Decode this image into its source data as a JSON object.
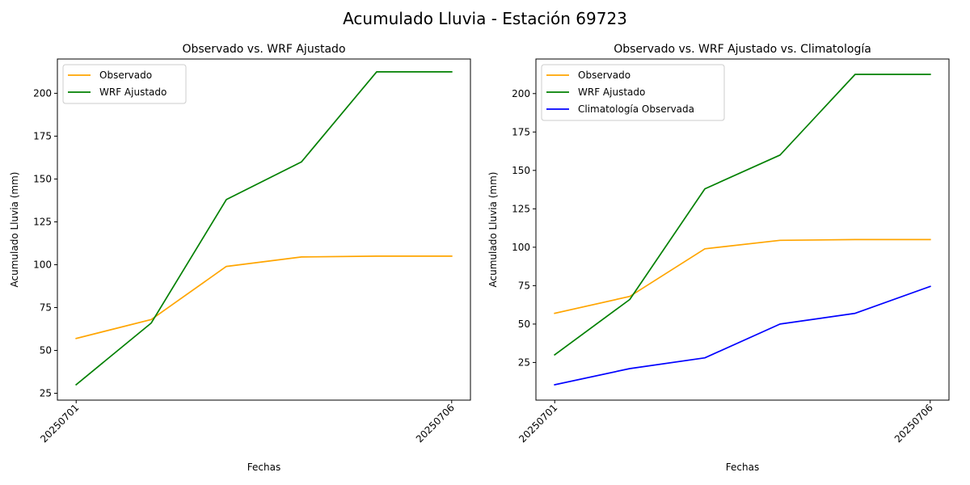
{
  "figure": {
    "suptitle": "Acumulado Lluvia - Estación 69723"
  },
  "chart_data": [
    {
      "type": "line",
      "title": "Observado vs. WRF Ajustado",
      "xlabel": "Fechas",
      "ylabel": "Acumulado Lluvia (mm)",
      "x": [
        0,
        1,
        2,
        3,
        4,
        5
      ],
      "xticks": [
        {
          "pos": 0,
          "label": "20250701"
        },
        {
          "pos": 5,
          "label": "20250706"
        }
      ],
      "xlim": [
        -0.25,
        5.25
      ],
      "ylim": [
        21,
        220
      ],
      "yticks": [
        25,
        50,
        75,
        100,
        125,
        150,
        175,
        200
      ],
      "grid": false,
      "legend": "upper-left",
      "series": [
        {
          "name": "Observado",
          "color": "#ffa500",
          "values": [
            57.0,
            68.0,
            99.0,
            104.5,
            105.0,
            105.0
          ]
        },
        {
          "name": "WRF Ajustado",
          "color": "#008000",
          "values": [
            30.0,
            66.0,
            138.0,
            160.0,
            212.5,
            212.5
          ]
        }
      ]
    },
    {
      "type": "line",
      "title": "Observado vs. WRF Ajustado vs. Climatología",
      "xlabel": "Fechas",
      "ylabel": "Acumulado Lluvia (mm)",
      "x": [
        0,
        1,
        2,
        3,
        4,
        5
      ],
      "xticks": [
        {
          "pos": 0,
          "label": "20250701"
        },
        {
          "pos": 5,
          "label": "20250706"
        }
      ],
      "xlim": [
        -0.25,
        5.25
      ],
      "ylim": [
        0.5,
        222.5
      ],
      "yticks": [
        25,
        50,
        75,
        100,
        125,
        150,
        175,
        200
      ],
      "grid": false,
      "legend": "upper-left",
      "series": [
        {
          "name": "Observado",
          "color": "#ffa500",
          "values": [
            57.0,
            68.0,
            99.0,
            104.5,
            105.0,
            105.0
          ]
        },
        {
          "name": "WRF Ajustado",
          "color": "#008000",
          "values": [
            30.0,
            66.0,
            138.0,
            160.0,
            212.5,
            212.5
          ]
        },
        {
          "name": "Climatología Observada",
          "color": "#0000ff",
          "values": [
            10.5,
            21.0,
            28.0,
            50.0,
            57.0,
            74.5
          ]
        }
      ]
    }
  ]
}
